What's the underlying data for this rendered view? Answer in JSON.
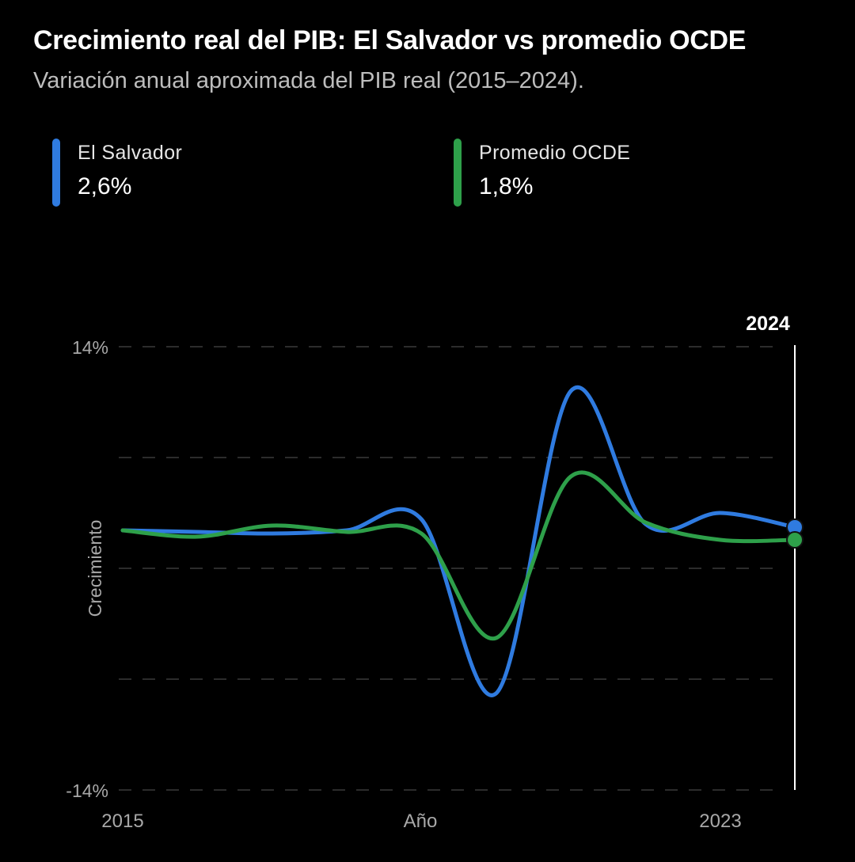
{
  "header": {
    "title": "Crecimiento real del PIB: El Salvador vs promedio OCDE",
    "subtitle": "Variación anual aproximada del PIB real (2015–2024)."
  },
  "legend": [
    {
      "name": "El Salvador",
      "value": "2,6%",
      "color": "#2f7be0"
    },
    {
      "name": "Promedio OCDE",
      "value": "1,8%",
      "color": "#2ea04a"
    }
  ],
  "chart_data": {
    "type": "line",
    "x": [
      2015,
      2016,
      2017,
      2018,
      2019,
      2020,
      2021,
      2022,
      2023,
      2024
    ],
    "xlabel": "Año",
    "ylabel": "Crecimiento",
    "x_tick_labels": [
      "2015",
      "Año",
      "2023"
    ],
    "y_tick_labels": [
      "14%",
      "-14%"
    ],
    "ylim": [
      -14,
      14
    ],
    "xlim": [
      2015,
      2024
    ],
    "highlight": {
      "label": "2024",
      "x": 2024
    },
    "series": [
      {
        "name": "El Salvador",
        "color": "#2f7be0",
        "values": [
          2.4,
          2.3,
          2.2,
          2.4,
          3.1,
          -7.9,
          11.2,
          2.8,
          3.5,
          2.6
        ]
      },
      {
        "name": "Promedio OCDE",
        "color": "#2ea04a",
        "values": [
          2.4,
          2.0,
          2.7,
          2.3,
          2.2,
          -4.4,
          5.8,
          2.9,
          1.8,
          1.8
        ]
      }
    ],
    "grid": "horizontal-dashed",
    "legend_position": "top-left"
  }
}
